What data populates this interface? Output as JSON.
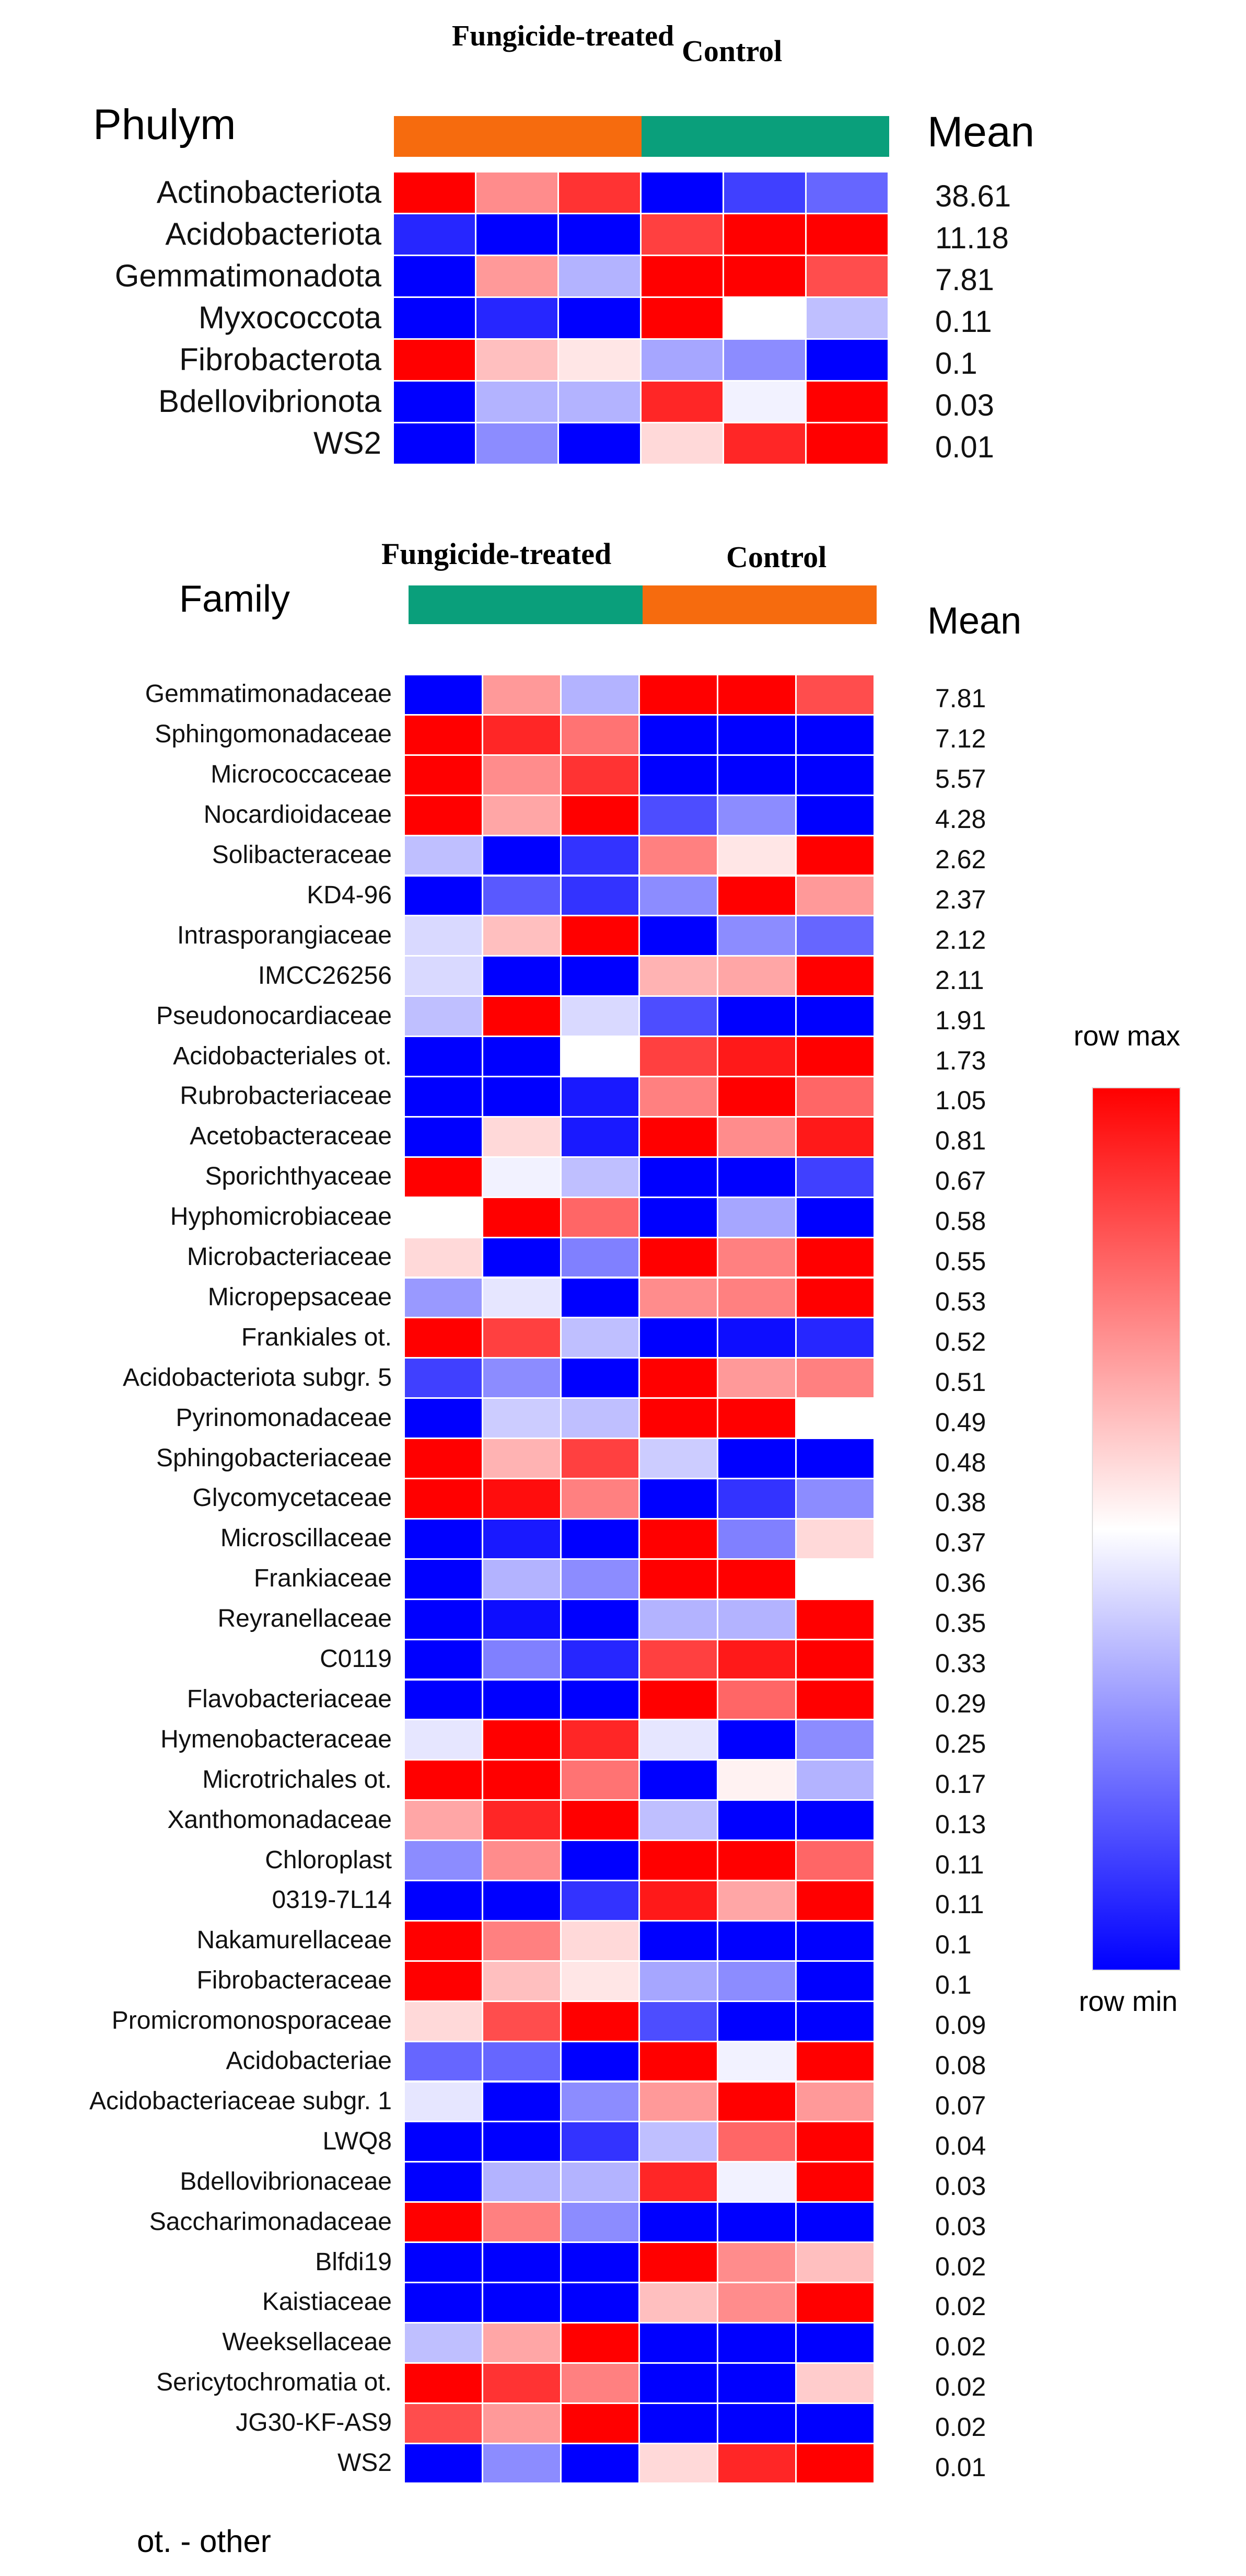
{
  "colors": {
    "fungicide_bar_phylum": "#f66b0e",
    "control_bar_phylum": "#0a9f7b",
    "fungicide_bar_family": "#0a9f7b",
    "control_bar_family": "#f66b0e",
    "scale_max": "#ff0000",
    "scale_mid": "#ffffff",
    "scale_min": "#0000ff"
  },
  "phylum_panel": {
    "title": "Phulym",
    "group_fungicide": "Fungicide-treated",
    "group_control": "Control",
    "mean_header": "Mean"
  },
  "family_panel": {
    "title": "Family",
    "group_fungicide": "Fungicide-treated",
    "group_control": "Control",
    "mean_header": "Mean"
  },
  "legend": {
    "max_label": "row max",
    "min_label": "row min"
  },
  "footnote": "ot. - other",
  "chart_data": [
    {
      "type": "heatmap",
      "title": "Phulym",
      "columns": [
        "Fungicide-treated 1",
        "Fungicide-treated 2",
        "Fungicide-treated 3",
        "Control 1",
        "Control 2",
        "Control 3"
      ],
      "value_scale": "row-normalized, -1 = row min (blue), 0 = mid (white), 1 = row max (red)",
      "rows": [
        {
          "label": "Actinobacteriota",
          "mean": "38.61",
          "values": [
            1.0,
            0.45,
            0.8,
            -1.0,
            -0.75,
            -0.6
          ]
        },
        {
          "label": "Acidobacteriota",
          "mean": "11.18",
          "values": [
            -0.85,
            -1.0,
            -1.0,
            0.75,
            1.0,
            1.0
          ]
        },
        {
          "label": "Gemmatimonadota",
          "mean": "7.81",
          "values": [
            -1.0,
            0.4,
            -0.3,
            1.0,
            1.0,
            0.7
          ]
        },
        {
          "label": "Myxococcota",
          "mean": "0.11",
          "values": [
            -1.0,
            -0.85,
            -1.0,
            1.0,
            0.0,
            -0.25
          ]
        },
        {
          "label": "Fibrobacterota",
          "mean": "0.1",
          "values": [
            1.0,
            0.25,
            0.1,
            -0.35,
            -0.45,
            -1.0
          ]
        },
        {
          "label": "Bdellovibrionota",
          "mean": "0.03",
          "values": [
            -1.0,
            -0.3,
            -0.3,
            0.85,
            -0.05,
            1.0
          ]
        },
        {
          "label": "WS2",
          "mean": "0.01",
          "values": [
            -1.0,
            -0.45,
            -1.0,
            0.15,
            0.85,
            1.0
          ]
        }
      ]
    },
    {
      "type": "heatmap",
      "title": "Family",
      "columns": [
        "Fungicide-treated 1",
        "Fungicide-treated 2",
        "Fungicide-treated 3",
        "Control 1",
        "Control 2",
        "Control 3"
      ],
      "value_scale": "row-normalized, -1 = row min (blue), 0 = mid (white), 1 = row max (red)",
      "rows": [
        {
          "label": "Gemmatimonadaceae",
          "mean": "7.81",
          "values": [
            -1.0,
            0.4,
            -0.3,
            1.0,
            1.0,
            0.7
          ]
        },
        {
          "label": "Sphingomonadaceae",
          "mean": "7.12",
          "values": [
            1.0,
            0.85,
            0.55,
            -1.0,
            -1.0,
            -1.0
          ]
        },
        {
          "label": "Micrococcaceae",
          "mean": "5.57",
          "values": [
            1.0,
            0.45,
            0.8,
            -1.0,
            -1.0,
            -1.0
          ]
        },
        {
          "label": "Nocardioidaceae",
          "mean": "4.28",
          "values": [
            1.0,
            0.35,
            1.0,
            -0.7,
            -0.45,
            -1.0
          ]
        },
        {
          "label": "Solibacteraceae",
          "mean": "2.62",
          "values": [
            -0.25,
            -1.0,
            -0.8,
            0.5,
            0.1,
            1.0
          ]
        },
        {
          "label": "KD4-96",
          "mean": "2.37",
          "values": [
            -1.0,
            -0.65,
            -0.8,
            -0.45,
            1.0,
            0.4
          ]
        },
        {
          "label": "Intrasporangiaceae",
          "mean": "2.12",
          "values": [
            -0.15,
            0.25,
            1.0,
            -1.0,
            -0.45,
            -0.6
          ]
        },
        {
          "label": "IMCC26256",
          "mean": "2.11",
          "values": [
            -0.15,
            -1.0,
            -1.0,
            0.3,
            0.35,
            1.0
          ]
        },
        {
          "label": "Pseudonocardiaceae",
          "mean": "1.91",
          "values": [
            -0.25,
            1.0,
            -0.15,
            -0.7,
            -1.0,
            -1.0
          ]
        },
        {
          "label": "Acidobacteriales ot.",
          "mean": "1.73",
          "values": [
            -1.0,
            -1.0,
            0.0,
            0.75,
            0.9,
            1.0
          ]
        },
        {
          "label": "Rubrobacteriaceae",
          "mean": "1.05",
          "values": [
            -1.0,
            -1.0,
            -0.9,
            0.5,
            1.0,
            0.6
          ]
        },
        {
          "label": "Acetobacteraceae",
          "mean": "0.81",
          "values": [
            -1.0,
            0.15,
            -0.9,
            1.0,
            0.45,
            0.9
          ]
        },
        {
          "label": "Sporichthyaceae",
          "mean": "0.67",
          "values": [
            1.0,
            -0.05,
            -0.25,
            -1.0,
            -1.0,
            -0.75
          ]
        },
        {
          "label": "Hyphomicrobiaceae",
          "mean": "0.58",
          "values": [
            0.0,
            1.0,
            0.6,
            -1.0,
            -0.35,
            -1.0
          ]
        },
        {
          "label": "Microbacteriaceae",
          "mean": "0.55",
          "values": [
            0.15,
            -1.0,
            -0.5,
            1.0,
            0.5,
            1.0
          ]
        },
        {
          "label": "Micropepsaceae",
          "mean": "0.53",
          "values": [
            -0.4,
            -0.1,
            -1.0,
            0.45,
            0.5,
            1.0
          ]
        },
        {
          "label": "Frankiales ot.",
          "mean": "0.52",
          "values": [
            1.0,
            0.75,
            -0.25,
            -1.0,
            -0.95,
            -0.85
          ]
        },
        {
          "label": "Acidobacteriota subgr. 5",
          "mean": "0.51",
          "values": [
            -0.75,
            -0.45,
            -1.0,
            1.0,
            0.4,
            0.5
          ]
        },
        {
          "label": "Pyrinomonadaceae",
          "mean": "0.49",
          "values": [
            -1.0,
            -0.2,
            -0.25,
            1.0,
            1.0,
            0.0
          ]
        },
        {
          "label": "Sphingobacteriaceae",
          "mean": "0.48",
          "values": [
            1.0,
            0.3,
            0.75,
            -0.2,
            -1.0,
            -1.0
          ]
        },
        {
          "label": "Glycomycetaceae",
          "mean": "0.38",
          "values": [
            1.0,
            0.95,
            0.5,
            -1.0,
            -0.8,
            -0.45
          ]
        },
        {
          "label": "Microscillaceae",
          "mean": "0.37",
          "values": [
            -1.0,
            -0.9,
            -1.0,
            1.0,
            -0.5,
            0.15
          ]
        },
        {
          "label": "Frankiaceae",
          "mean": "0.36",
          "values": [
            -1.0,
            -0.3,
            -0.45,
            1.0,
            1.0,
            0.0
          ]
        },
        {
          "label": "Reyranellaceae",
          "mean": "0.35",
          "values": [
            -1.0,
            -0.95,
            -1.0,
            -0.3,
            -0.3,
            1.0
          ]
        },
        {
          "label": "C0119",
          "mean": "0.33",
          "values": [
            -1.0,
            -0.5,
            -0.85,
            0.75,
            0.9,
            1.0
          ]
        },
        {
          "label": "Flavobacteriaceae",
          "mean": "0.29",
          "values": [
            -1.0,
            -1.0,
            -1.0,
            1.0,
            0.6,
            1.0
          ]
        },
        {
          "label": "Hymenobacteraceae",
          "mean": "0.25",
          "values": [
            -0.1,
            1.0,
            0.85,
            -0.1,
            -1.0,
            -0.45
          ]
        },
        {
          "label": "Microtrichales ot.",
          "mean": "0.17",
          "values": [
            1.0,
            1.0,
            0.55,
            -1.0,
            0.05,
            -0.3
          ]
        },
        {
          "label": "Xanthomonadaceae",
          "mean": "0.13",
          "values": [
            0.35,
            0.85,
            1.0,
            -0.25,
            -1.0,
            -1.0
          ]
        },
        {
          "label": "Chloroplast",
          "mean": "0.11",
          "values": [
            -0.45,
            0.45,
            -1.0,
            1.0,
            1.0,
            0.6
          ]
        },
        {
          "label": "0319-7L14",
          "mean": "0.11",
          "values": [
            -1.0,
            -1.0,
            -0.8,
            0.9,
            0.35,
            1.0
          ]
        },
        {
          "label": "Nakamurellaceae",
          "mean": "0.1",
          "values": [
            1.0,
            0.5,
            0.15,
            -1.0,
            -1.0,
            -1.0
          ]
        },
        {
          "label": "Fibrobacteraceae",
          "mean": "0.1",
          "values": [
            1.0,
            0.25,
            0.1,
            -0.35,
            -0.45,
            -1.0
          ]
        },
        {
          "label": "Promicromonosporaceae",
          "mean": "0.09",
          "values": [
            0.15,
            0.7,
            1.0,
            -0.7,
            -1.0,
            -1.0
          ]
        },
        {
          "label": "Acidobacteriae",
          "mean": "0.08",
          "values": [
            -0.6,
            -0.6,
            -1.0,
            1.0,
            -0.05,
            1.0
          ]
        },
        {
          "label": "Acidobacteriaceae subgr. 1",
          "mean": "0.07",
          "values": [
            -0.1,
            -1.0,
            -0.45,
            0.4,
            1.0,
            0.4
          ]
        },
        {
          "label": "LWQ8",
          "mean": "0.04",
          "values": [
            -1.0,
            -1.0,
            -0.8,
            -0.25,
            0.6,
            1.0
          ]
        },
        {
          "label": "Bdellovibrionaceae",
          "mean": "0.03",
          "values": [
            -1.0,
            -0.3,
            -0.3,
            0.85,
            -0.05,
            1.0
          ]
        },
        {
          "label": "Saccharimonadaceae",
          "mean": "0.03",
          "values": [
            1.0,
            0.5,
            -0.45,
            -1.0,
            -1.0,
            -1.0
          ]
        },
        {
          "label": "Blfdi19",
          "mean": "0.02",
          "values": [
            -1.0,
            -1.0,
            -1.0,
            1.0,
            0.45,
            0.25
          ]
        },
        {
          "label": "Kaistiaceae",
          "mean": "0.02",
          "values": [
            -1.0,
            -1.0,
            -1.0,
            0.25,
            0.45,
            1.0
          ]
        },
        {
          "label": "Weeksellaceae",
          "mean": "0.02",
          "values": [
            -0.25,
            0.35,
            1.0,
            -1.0,
            -1.0,
            -1.0
          ]
        },
        {
          "label": "Sericytochromatia ot.",
          "mean": "0.02",
          "values": [
            1.0,
            0.8,
            0.5,
            -1.0,
            -1.0,
            0.2
          ]
        },
        {
          "label": "JG30-KF-AS9",
          "mean": "0.02",
          "values": [
            0.7,
            0.4,
            1.0,
            -1.0,
            -1.0,
            -1.0
          ]
        },
        {
          "label": "WS2",
          "mean": "0.01",
          "values": [
            -1.0,
            -0.45,
            -1.0,
            0.15,
            0.85,
            1.0
          ]
        }
      ]
    }
  ]
}
